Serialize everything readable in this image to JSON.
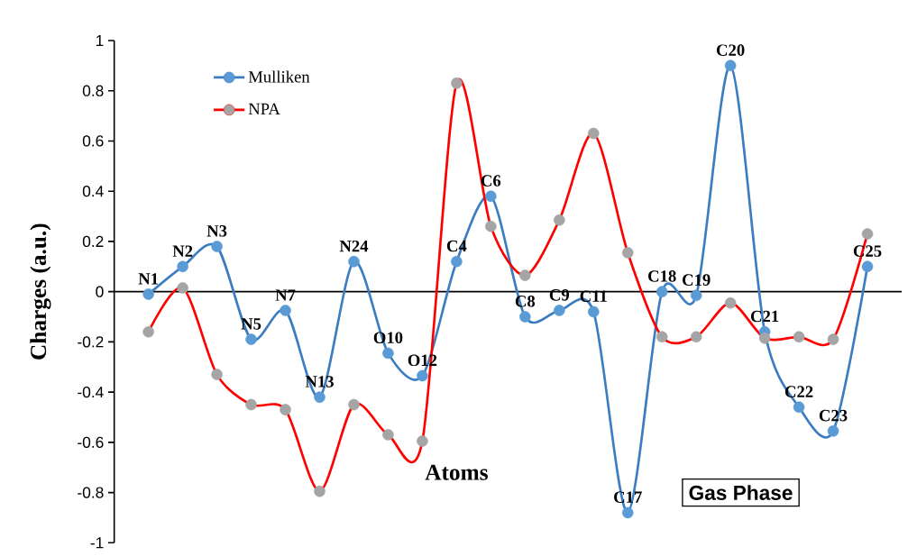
{
  "chart_data": {
    "type": "line",
    "ylabel": "Charges (a.u.)",
    "categories": [
      "N1",
      "N2",
      "N3",
      "N5",
      "N7",
      "N13",
      "N24",
      "O10",
      "O12",
      "C4",
      "C6",
      "C8",
      "C9",
      "C11",
      "C17",
      "C18",
      "C19",
      "C20",
      "C21",
      "C22",
      "C23",
      "C25"
    ],
    "series": [
      {
        "name": "Mulliken",
        "color": "#3b7dc0",
        "colors": [
          "#5b9bd5",
          "#5b9bd5",
          "#5b9bd5",
          "#5b9bd5",
          "#5b9bd5",
          "#5b9bd5",
          "#5b9bd5",
          "#5b9bd5",
          "#5b9bd5",
          "#5b9bd5",
          "#5b9bd5",
          "#5b9bd5",
          "#5b9bd5",
          "#5b9bd5",
          "#5b9bd5",
          "#5b9bd5",
          "#5b9bd5",
          "#5b9bd5",
          "#5b9bd5",
          "#5b9bd5",
          "#5b9bd5",
          "#5b9bd5"
        ],
        "values": [
          -0.01,
          0.1,
          0.18,
          -0.19,
          -0.075,
          -0.42,
          0.12,
          -0.245,
          -0.335,
          0.12,
          0.38,
          -0.1,
          -0.075,
          -0.08,
          -0.88,
          0.0,
          -0.015,
          0.9,
          -0.16,
          -0.46,
          -0.555,
          0.1
        ]
      },
      {
        "name": "NPA",
        "color": "#ff0000",
        "colors": [
          "#a5a5a5",
          "#a5a5a5",
          "#a5a5a5",
          "#a5a5a5",
          "#a5a5a5",
          "#a5a5a5",
          "#a5a5a5",
          "#a5a5a5",
          "#a5a5a5",
          "#a5a5a5",
          "#a5a5a5",
          "#a5a5a5",
          "#a5a5a5",
          "#a5a5a5",
          "#a5a5a5",
          "#a5a5a5",
          "#a5a5a5",
          "#a5a5a5",
          "#a5a5a5",
          "#a5a5a5",
          "#a5a5a5",
          "#a5a5a5"
        ],
        "values": [
          -0.16,
          0.015,
          -0.33,
          -0.45,
          -0.47,
          -0.795,
          -0.45,
          -0.57,
          -0.595,
          0.83,
          0.26,
          0.065,
          0.285,
          0.63,
          0.155,
          -0.18,
          -0.18,
          -0.045,
          -0.185,
          -0.18,
          -0.19,
          0.23
        ]
      }
    ],
    "ylim": [
      -1,
      1
    ],
    "yticks": [
      -1,
      -0.8,
      -0.6,
      -0.4,
      -0.2,
      0,
      0.2,
      0.4,
      0.6,
      0.8,
      1
    ],
    "annotations": [
      "Atoms",
      "Gas Phase"
    ],
    "tick_labels": "y",
    "legend": "top left",
    "marker": "circle",
    "line_style": "solid",
    "grid": false
  }
}
